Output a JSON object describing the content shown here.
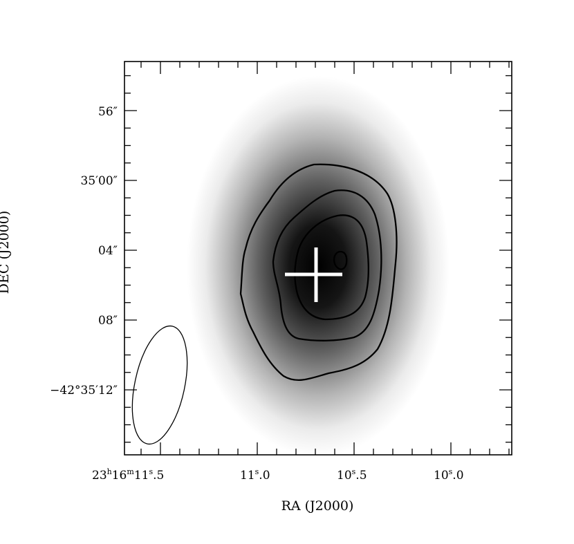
{
  "chart_data": {
    "type": "heatmap",
    "xlabel": "RA (J2000)",
    "ylabel": "DEC (J2000)",
    "x_tick_labels": [
      {
        "pre": "23",
        "s1": "h",
        "mid": "16",
        "s2": "m",
        "num": "11",
        "s3": "s",
        "frac": ".5",
        "ra_s": 11.5
      },
      {
        "pre": "",
        "s1": "",
        "mid": "",
        "s2": "",
        "num": "11",
        "s3": "s",
        "frac": ".0",
        "ra_s": 11.0
      },
      {
        "pre": "",
        "s1": "",
        "mid": "",
        "s2": "",
        "num": "10",
        "s3": "s",
        "frac": ".5",
        "ra_s": 10.5
      },
      {
        "pre": "",
        "s1": "",
        "mid": "",
        "s2": "",
        "num": "10",
        "s3": "s",
        "frac": ".0",
        "ra_s": 10.0
      }
    ],
    "y_tick_labels": [
      {
        "text": "56″",
        "dec_arcsec": -56
      },
      {
        "text": "35′00″",
        "dec_arcsec": -60
      },
      {
        "text": "04″",
        "dec_arcsec": -64
      },
      {
        "text": "08″",
        "dec_arcsec": -68
      },
      {
        "text": "−42°35′12″",
        "dec_arcsec": -72
      }
    ],
    "xlim_ra_s": [
      11.96,
      9.82
    ],
    "ylim_dec_offset_arcsec": [
      -53.2,
      -75.8
    ],
    "image": {
      "center_ra_s": 10.7,
      "center_dec_offset_arcsec": -64.8,
      "colormap": "inverted-grayscale",
      "peak_color": "#000000",
      "background_color": "#ffffff"
    },
    "contours": {
      "levels": 4,
      "color": "#000000",
      "peak_ra_s": 10.56,
      "peak_dec_offset_arcsec": -64.4
    },
    "marker": {
      "shape": "cross",
      "color": "#ffffff",
      "ra_s": 10.7,
      "dec_offset_arcsec": -65.2
    },
    "beam": {
      "shape": "ellipse",
      "ra_s": 11.54,
      "dec_offset_arcsec": -71.7
    }
  }
}
